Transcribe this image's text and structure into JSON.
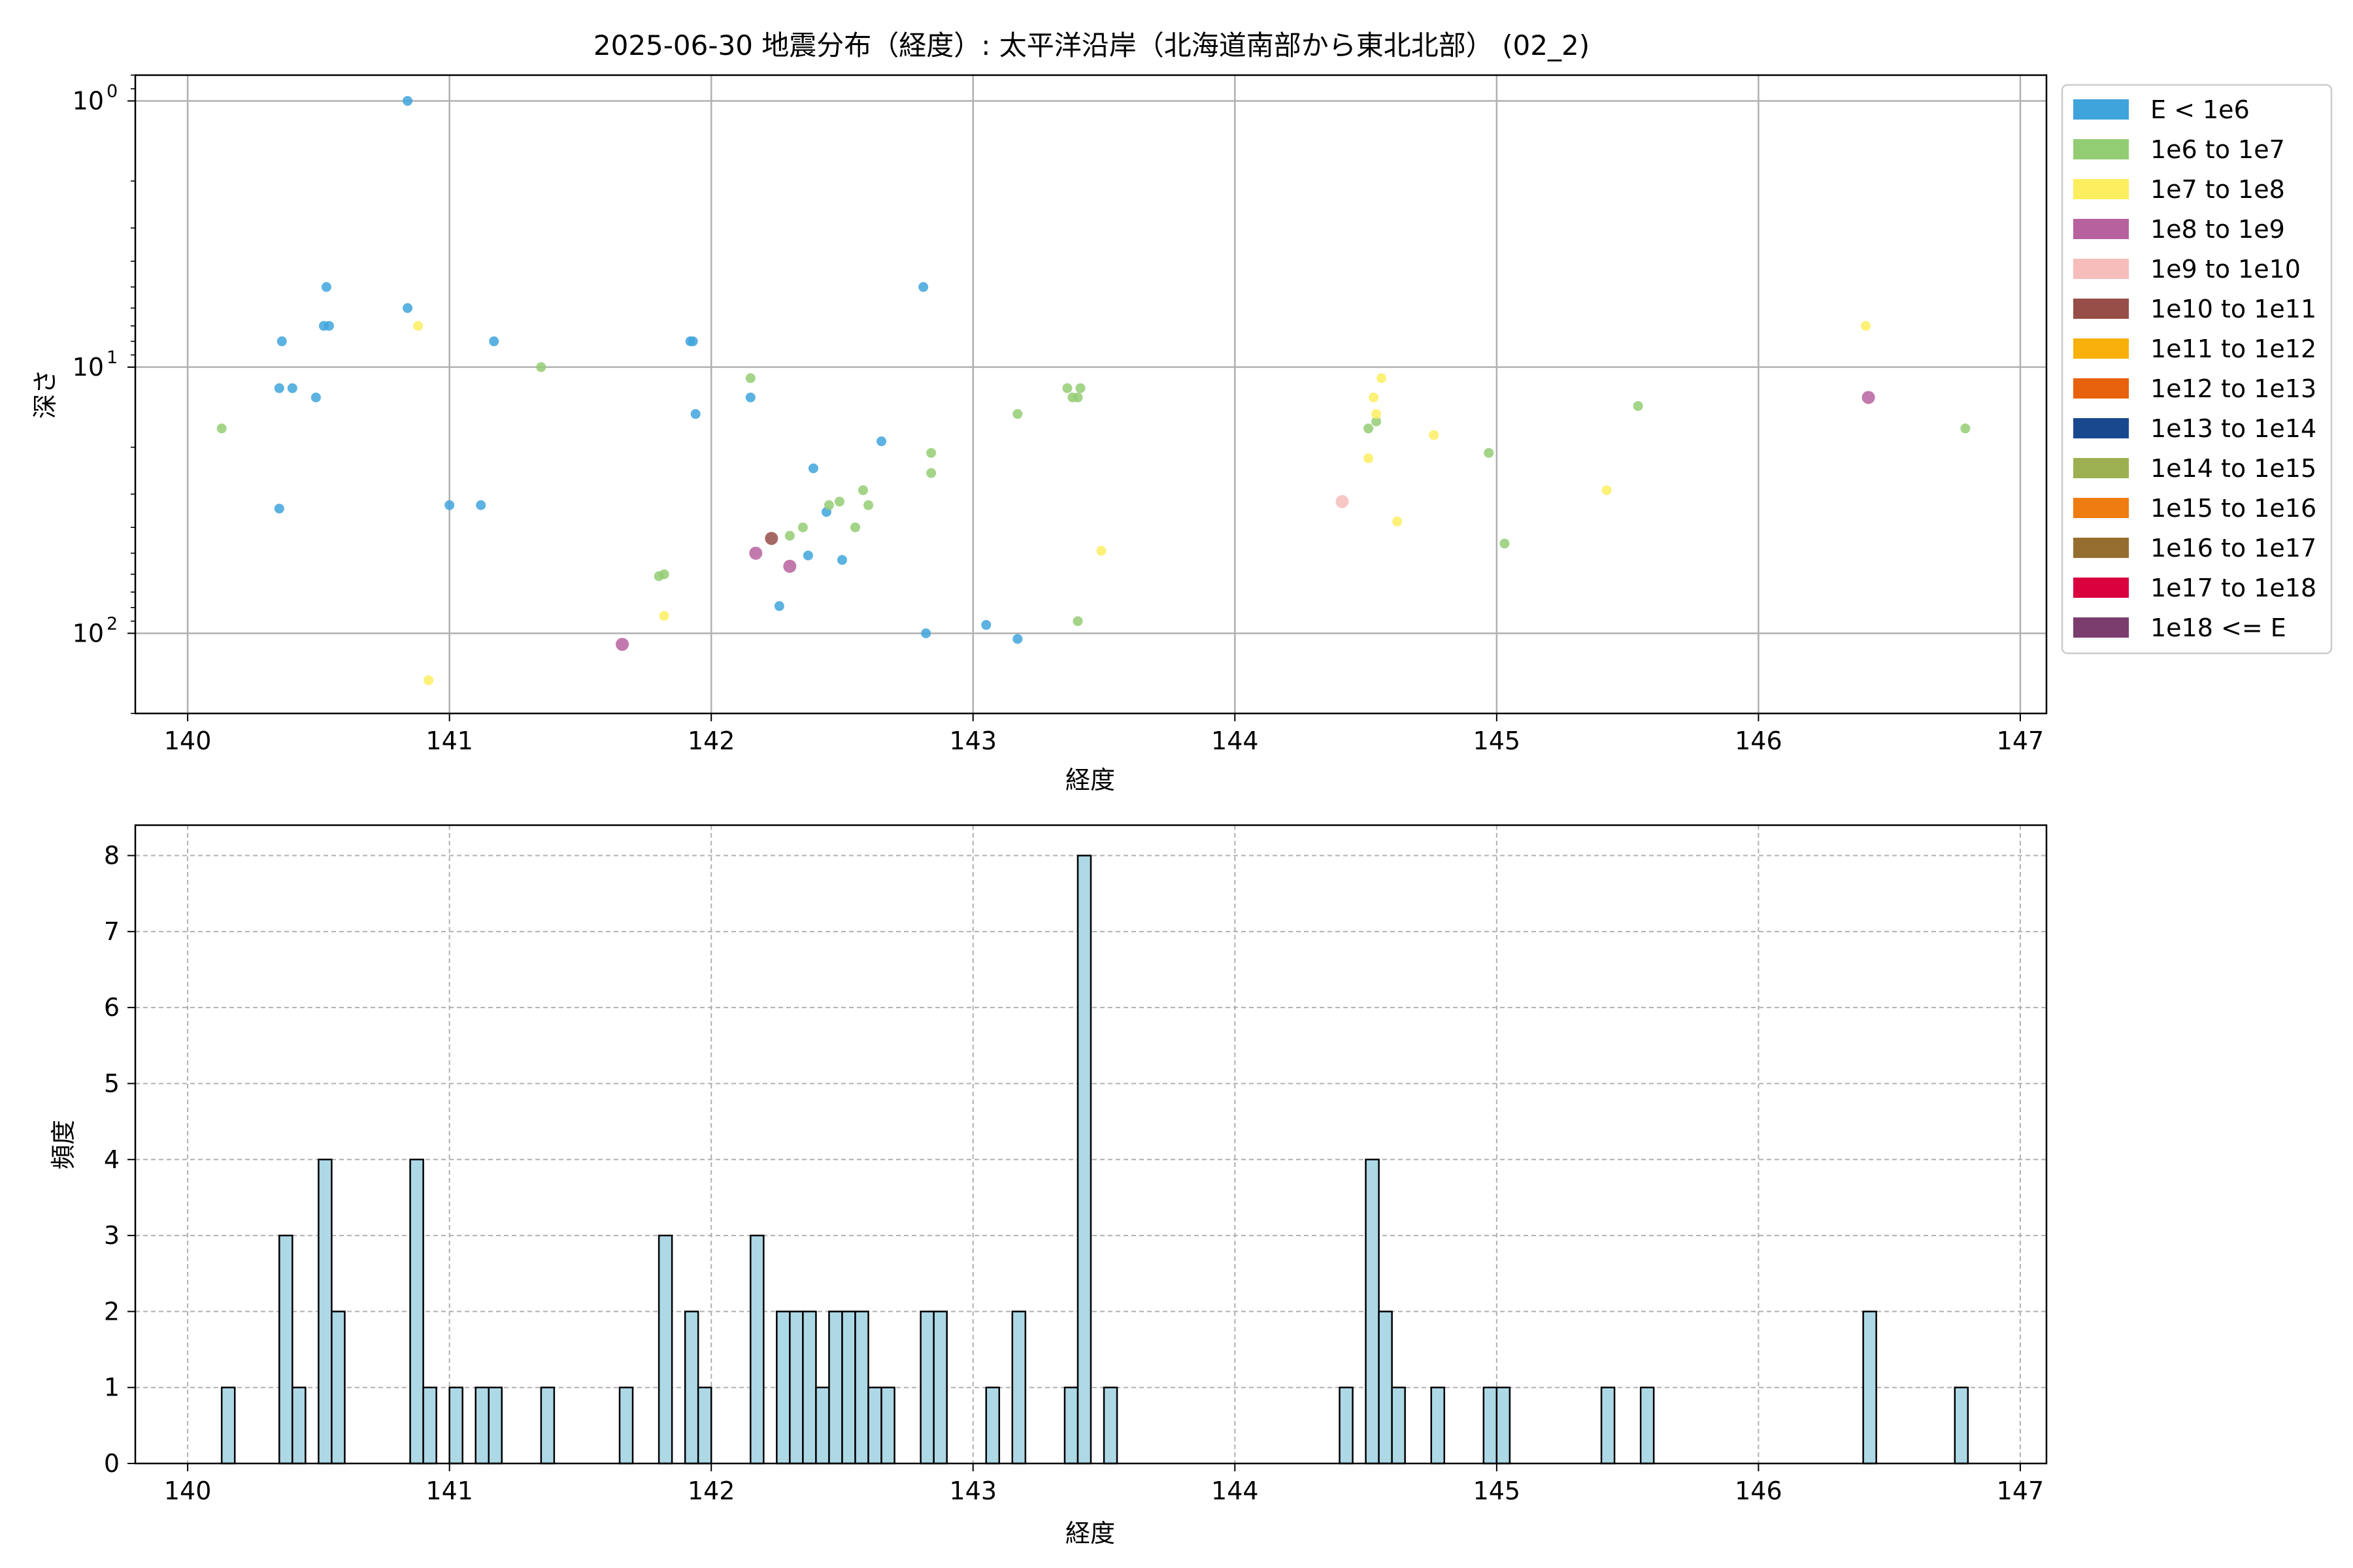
{
  "chart_data": [
    {
      "type": "scatter",
      "title": "2025-06-30 地震分布（経度）: 太平洋沿岸（北海道南部から東北北部） (02_2)",
      "xlabel": "経度",
      "ylabel": "深さ",
      "xlim": [
        139.8,
        147.1
      ],
      "ylim": [
        200,
        0.8
      ],
      "y_scale": "log",
      "y_inverted": true,
      "grid": true,
      "x_ticks": [
        "140",
        "141",
        "142",
        "143",
        "144",
        "145",
        "146",
        "147"
      ],
      "y_ticks": [
        {
          "value": 1,
          "label": "10",
          "exp": "0"
        },
        {
          "value": 10,
          "label": "10",
          "exp": "1"
        },
        {
          "value": 100,
          "label": "10",
          "exp": "2"
        }
      ],
      "legend_position": "outside-right",
      "legend": [
        {
          "label": "E < 1e6",
          "color": "#3fa4dc"
        },
        {
          "label": "1e6 to 1e7",
          "color": "#93cd73"
        },
        {
          "label": "1e7 to 1e8",
          "color": "#fdee60"
        },
        {
          "label": "1e8 to 1e9",
          "color": "#b7629f"
        },
        {
          "label": "1e9 to 1e10",
          "color": "#f6bdba"
        },
        {
          "label": "1e10 to 1e11",
          "color": "#974e48"
        },
        {
          "label": "1e11 to 1e12",
          "color": "#f7b10a"
        },
        {
          "label": "1e12 to 1e13",
          "color": "#e8620e"
        },
        {
          "label": "1e13 to 1e14",
          "color": "#19488f"
        },
        {
          "label": "1e14 to 1e15",
          "color": "#9cb052"
        },
        {
          "label": "1e15 to 1e16",
          "color": "#ef7c10"
        },
        {
          "label": "1e16 to 1e17",
          "color": "#956e2f"
        },
        {
          "label": "1e17 to 1e18",
          "color": "#d9023f"
        },
        {
          "label": "1e18 <= E",
          "color": "#7b3d6e"
        }
      ],
      "series": [
        {
          "class": 0,
          "points": [
            [
              140.84,
              1.0
            ],
            [
              140.53,
              5.0
            ],
            [
              140.84,
              6.0
            ],
            [
              140.52,
              7.0
            ],
            [
              140.54,
              7.0
            ],
            [
              140.36,
              8.0
            ],
            [
              141.17,
              8.0
            ],
            [
              141.92,
              8.0
            ],
            [
              141.93,
              8.0
            ],
            [
              140.35,
              12.0
            ],
            [
              140.4,
              12.0
            ],
            [
              140.49,
              13.0
            ],
            [
              142.15,
              13.0
            ],
            [
              141.94,
              15.0
            ],
            [
              142.65,
              19.0
            ],
            [
              142.81,
              5.0
            ],
            [
              142.39,
              24.0
            ],
            [
              142.44,
              35.0
            ],
            [
              140.35,
              34.0
            ],
            [
              141.0,
              33.0
            ],
            [
              141.12,
              33.0
            ],
            [
              142.37,
              51.0
            ],
            [
              142.5,
              53.0
            ],
            [
              142.26,
              79.0
            ],
            [
              143.05,
              93.0
            ],
            [
              142.82,
              100.0
            ],
            [
              143.17,
              105.0
            ]
          ]
        },
        {
          "class": 1,
          "points": [
            [
              140.13,
              17.0
            ],
            [
              141.35,
              10.0
            ],
            [
              142.15,
              11.0
            ],
            [
              143.17,
              15.0
            ],
            [
              143.36,
              12.0
            ],
            [
              143.41,
              12.0
            ],
            [
              143.4,
              13.0
            ],
            [
              143.38,
              13.0
            ],
            [
              142.84,
              21.0
            ],
            [
              142.84,
              25.0
            ],
            [
              145.54,
              14.0
            ],
            [
              146.79,
              17.0
            ],
            [
              144.97,
              21.0
            ],
            [
              144.54,
              16.0
            ],
            [
              144.51,
              17.0
            ],
            [
              142.58,
              29.0
            ],
            [
              142.6,
              33.0
            ],
            [
              142.49,
              32.0
            ],
            [
              142.45,
              33.0
            ],
            [
              142.55,
              40.0
            ],
            [
              142.35,
              40.0
            ],
            [
              142.3,
              43.0
            ],
            [
              141.82,
              60.0
            ],
            [
              141.8,
              61.0
            ],
            [
              145.03,
              46.0
            ],
            [
              143.4,
              90.0
            ]
          ]
        },
        {
          "class": 2,
          "points": [
            [
              140.88,
              7.0
            ],
            [
              146.41,
              7.0
            ],
            [
              144.56,
              11.0
            ],
            [
              144.53,
              13.0
            ],
            [
              144.54,
              15.0
            ],
            [
              144.76,
              18.0
            ],
            [
              144.51,
              22.0
            ],
            [
              145.42,
              29.0
            ],
            [
              144.62,
              38.0
            ],
            [
              143.49,
              49.0
            ],
            [
              141.82,
              86.0
            ],
            [
              140.92,
              150.0
            ]
          ]
        },
        {
          "class": 3,
          "points": [
            [
              142.17,
              50.0
            ],
            [
              142.3,
              56.0
            ],
            [
              141.66,
              110.0
            ],
            [
              146.42,
              13.0
            ]
          ]
        },
        {
          "class": 4,
          "points": [
            [
              144.41,
              32.0
            ]
          ]
        },
        {
          "class": 5,
          "points": [
            [
              142.23,
              44.0
            ]
          ]
        }
      ]
    },
    {
      "type": "bar",
      "xlabel": "経度",
      "ylabel": "頻度",
      "xlim": [
        139.8,
        147.1
      ],
      "ylim": [
        0,
        8.4
      ],
      "grid": true,
      "bin_width": 0.05,
      "bar_color": "#add8e6",
      "x_ticks": [
        "140",
        "141",
        "142",
        "143",
        "144",
        "145",
        "146",
        "147"
      ],
      "y_ticks": [
        "0",
        "1",
        "2",
        "3",
        "4",
        "5",
        "6",
        "7",
        "8"
      ],
      "bins": [
        [
          140.13,
          1
        ],
        [
          140.35,
          3
        ],
        [
          140.4,
          1
        ],
        [
          140.5,
          4
        ],
        [
          140.55,
          2
        ],
        [
          140.85,
          4
        ],
        [
          140.9,
          1
        ],
        [
          141.0,
          1
        ],
        [
          141.1,
          1
        ],
        [
          141.15,
          1
        ],
        [
          141.35,
          1
        ],
        [
          141.65,
          1
        ],
        [
          141.8,
          3
        ],
        [
          141.9,
          2
        ],
        [
          141.95,
          1
        ],
        [
          142.15,
          3
        ],
        [
          142.25,
          2
        ],
        [
          142.3,
          2
        ],
        [
          142.35,
          2
        ],
        [
          142.4,
          1
        ],
        [
          142.45,
          2
        ],
        [
          142.5,
          2
        ],
        [
          142.55,
          2
        ],
        [
          142.6,
          1
        ],
        [
          142.65,
          1
        ],
        [
          142.8,
          2
        ],
        [
          142.85,
          2
        ],
        [
          143.05,
          1
        ],
        [
          143.15,
          2
        ],
        [
          143.35,
          1
        ],
        [
          143.4,
          8
        ],
        [
          143.5,
          1
        ],
        [
          144.4,
          1
        ],
        [
          144.5,
          4
        ],
        [
          144.55,
          2
        ],
        [
          144.6,
          1
        ],
        [
          144.75,
          1
        ],
        [
          144.95,
          1
        ],
        [
          145.0,
          1
        ],
        [
          145.4,
          1
        ],
        [
          145.55,
          1
        ],
        [
          146.4,
          2
        ],
        [
          146.75,
          1
        ]
      ]
    }
  ]
}
